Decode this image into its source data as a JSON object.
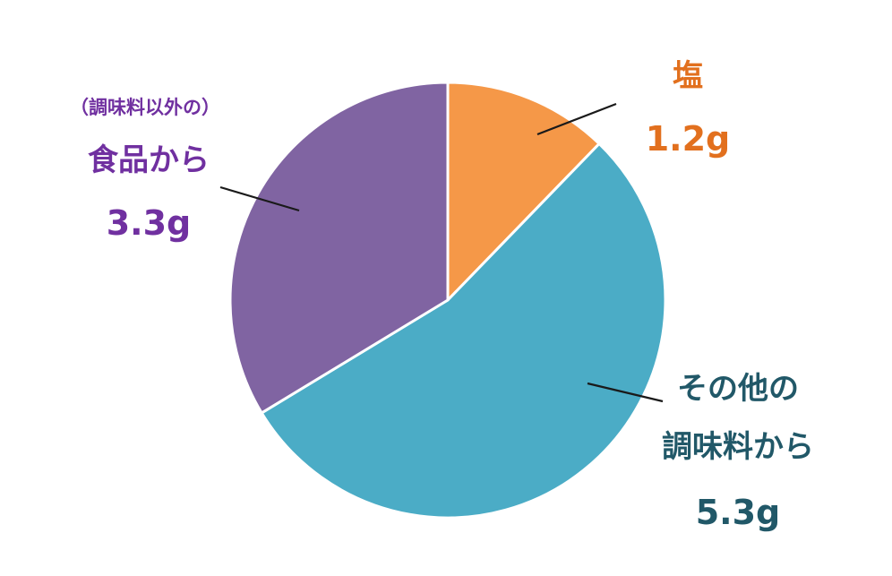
{
  "chart_data": {
    "type": "pie",
    "start_angle_deg": 0,
    "direction": "clockwise",
    "unit": "g",
    "slices": [
      {
        "key": "salt",
        "name": "塩",
        "value": 1.2,
        "value_label": "1.2g",
        "color": "#F59848",
        "label_color": "#E2701E",
        "label_lines": [
          "塩"
        ]
      },
      {
        "key": "other-seasonings",
        "name": "その他の調味料から",
        "value": 5.3,
        "value_label": "5.3g",
        "color": "#4BACC6",
        "label_color": "#215868",
        "label_lines": [
          "その他の",
          "調味料から"
        ]
      },
      {
        "key": "food",
        "name": "（調味料以外の）食品から",
        "value": 3.3,
        "value_label": "3.3g",
        "color": "#8064A2",
        "label_color": "#7030A0",
        "label_lines": [
          "（調味料以外の）",
          "食品から"
        ]
      }
    ]
  }
}
